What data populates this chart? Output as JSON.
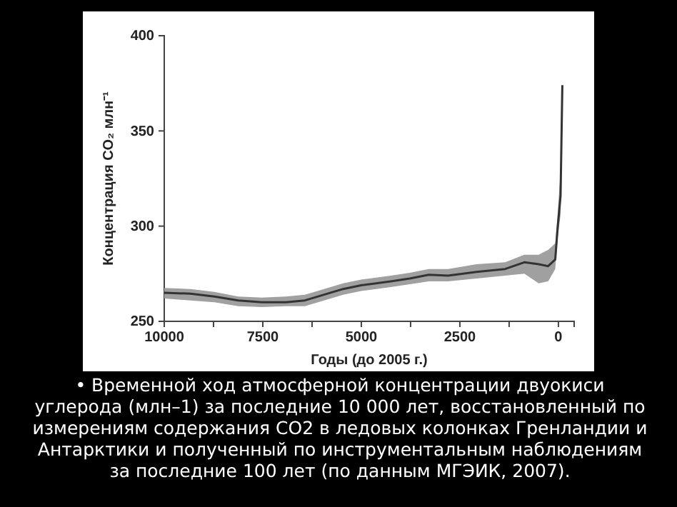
{
  "chart_data": {
    "type": "line",
    "xlabel": "Годы (до 2005 г.)",
    "ylabel": "Концентрация CO₂ млн⁻¹",
    "annotations": [
      "• Временной ход атмосферной концентрации двуокиси углерода (млн–1) за последние 10 000 лет, восстановленный по измерениям содержания CO2 в ледовых колонках Гренландии и Антарктики и полученный по инструментальным наблюдениям за последние 100 лет (по данным МГЭИК, 2007)."
    ],
    "x": [
      10000,
      9335,
      8730,
      8125,
      7520,
      6915,
      6430,
      5945,
      5460,
      4980,
      4250,
      3770,
      3285,
      2800,
      2075,
      1350,
      865,
      500,
      260,
      80,
      20,
      -55,
      -100
    ],
    "series": [
      {
        "color": "#333333",
        "values": [
          265,
          264.5,
          263,
          261,
          260,
          260,
          261,
          264,
          267,
          269,
          271,
          272.5,
          274.5,
          274,
          276,
          277.5,
          281,
          280,
          279,
          282.5,
          299,
          316,
          374
        ],
        "lower": [
          262,
          261,
          260,
          258,
          257.5,
          258,
          258,
          261,
          264,
          266,
          268,
          269.5,
          271,
          271,
          272.5,
          274,
          275,
          270,
          271,
          277.5,
          294,
          306,
          372
        ],
        "upper": [
          267.5,
          267,
          265.5,
          263,
          262.5,
          263,
          264,
          267,
          270,
          272,
          274,
          275.5,
          277.5,
          277.5,
          280,
          281,
          285,
          285,
          287.5,
          291,
          306,
          329,
          375
        ]
      }
    ],
    "xlim": [
      10000,
      -400
    ],
    "ylim": [
      250,
      400
    ],
    "xticks": [
      10000,
      {
        "value": 8750,
        "label": null
      },
      7500,
      {
        "value": 6250,
        "label": null
      },
      5000,
      {
        "value": 3750,
        "label": null
      },
      2500,
      {
        "value": 1250,
        "label": null
      },
      0
    ],
    "yticks": [
      250,
      300,
      350,
      400
    ],
    "grid": false,
    "marker": "none",
    "line_style": "solid"
  }
}
